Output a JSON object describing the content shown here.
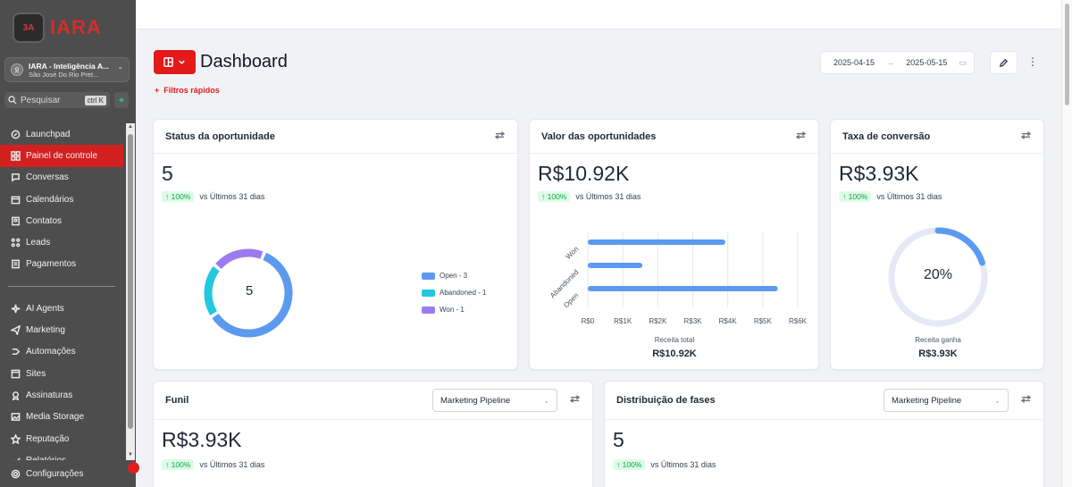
{
  "sidebar": {
    "logo_text": "IARA",
    "logo_mark_text": "3A",
    "account": {
      "name": "IARA - Inteligência A...",
      "location": "São José Do Rio Pret..."
    },
    "search_placeholder": "Pesquisar",
    "search_shortcut": "ctrl K",
    "items": [
      {
        "label": "Launchpad",
        "icon": "rocket-icon"
      },
      {
        "label": "Painel de controle",
        "icon": "grid-icon",
        "active": true
      },
      {
        "label": "Conversas",
        "icon": "chat-icon"
      },
      {
        "label": "Calendários",
        "icon": "calendar-icon"
      },
      {
        "label": "Contatos",
        "icon": "contacts-icon"
      },
      {
        "label": "Leads",
        "icon": "leads-icon"
      },
      {
        "label": "Pagamentos",
        "icon": "payments-icon"
      }
    ],
    "items2": [
      {
        "label": "AI Agents",
        "icon": "sparkles-icon"
      },
      {
        "label": "Marketing",
        "icon": "send-icon"
      },
      {
        "label": "Automações",
        "icon": "automation-icon"
      },
      {
        "label": "Sites",
        "icon": "sites-icon"
      },
      {
        "label": "Assinaturas",
        "icon": "badge-icon"
      },
      {
        "label": "Media Storage",
        "icon": "image-icon"
      },
      {
        "label": "Reputação",
        "icon": "star-icon"
      },
      {
        "label": "Relatórios",
        "icon": "report-icon"
      }
    ],
    "settings_label": "Configurações"
  },
  "header": {
    "title": "Dashboard",
    "quick_filters": "Filtros rápidos",
    "date_from": "2025-04-15",
    "date_to": "2025-05-15"
  },
  "cards": {
    "status": {
      "title": "Status da oportunidade",
      "value": "5",
      "delta": "100%",
      "compare": "vs Últimos 31 dias",
      "donut_center": "5",
      "legend": [
        {
          "label": "Open - 3",
          "color": "#5b9af0"
        },
        {
          "label": "Abandoned - 1",
          "color": "#22c7e0"
        },
        {
          "label": "Won - 1",
          "color": "#9b7bf0"
        }
      ]
    },
    "value": {
      "title": "Valor das oportunidades",
      "value": "R$10.92K",
      "delta": "100%",
      "compare": "vs Últimos 31 dias",
      "caption": "Receita total",
      "caption_value": "R$10.92K"
    },
    "conversion": {
      "title": "Taxa de conversão",
      "value": "R$3.93K",
      "delta": "100%",
      "compare": "vs Últimos 31 dias",
      "gauge_label": "20%",
      "gauge_fraction": 0.2,
      "caption": "Receita ganha",
      "caption_value": "R$3.93K"
    },
    "funnel": {
      "title": "Funil",
      "select": "Marketing Pipeline",
      "value": "R$3.93K",
      "delta": "100%",
      "compare": "vs Últimos 31 dias"
    },
    "stages": {
      "title": "Distribuição de fases",
      "select": "Marketing Pipeline",
      "value": "5",
      "delta": "100%",
      "compare": "vs Últimos 31 dias"
    }
  },
  "chart_data": [
    {
      "type": "pie",
      "categories": [
        "Open",
        "Abandoned",
        "Won"
      ],
      "values": [
        3,
        1,
        1
      ],
      "colors": [
        "#5b9af0",
        "#22c7e0",
        "#9b7bf0"
      ]
    },
    {
      "type": "bar",
      "orientation": "horizontal",
      "categories": [
        "Won",
        "Abandoned",
        "Open"
      ],
      "values": [
        3930,
        1560,
        5430
      ],
      "xticks": [
        "R$0",
        "R$1K",
        "R$2K",
        "R$3K",
        "R$4K",
        "R$5K",
        "R$6K"
      ],
      "xlim": [
        0,
        6000
      ],
      "color": "#5b9af0"
    }
  ]
}
